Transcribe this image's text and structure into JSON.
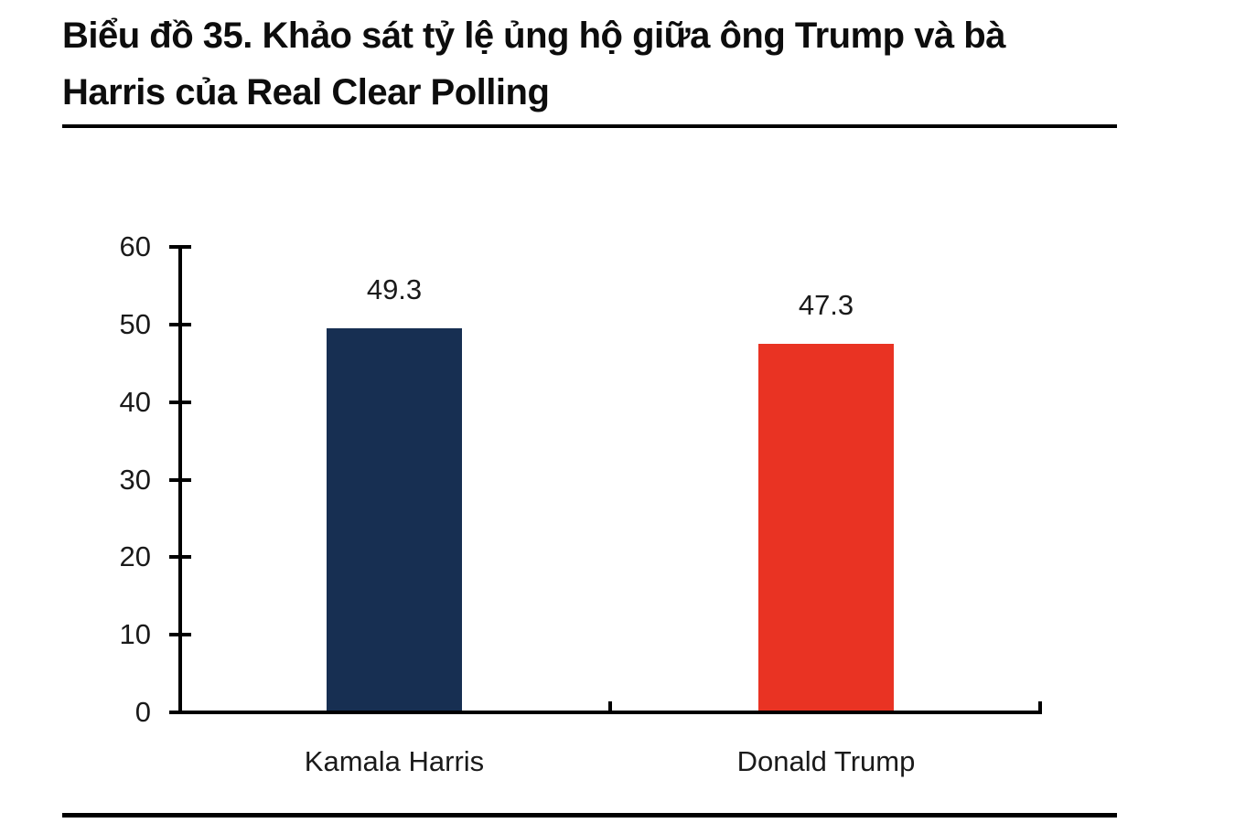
{
  "page": {
    "title_lines": [
      "Biểu đồ 35. Khảo sát tỷ lệ ủng hộ giữa ông Trump và bà",
      "Harris của Real Clear Polling"
    ]
  },
  "chart_data": {
    "type": "bar",
    "title": "Biểu đồ 35. Khảo sát tỷ lệ ủng hộ giữa ông Trump và bà Harris của Real Clear Polling",
    "categories": [
      "Kamala Harris",
      "Donald Trump"
    ],
    "values": [
      49.3,
      47.3
    ],
    "value_labels": [
      "49.3",
      "47.3"
    ],
    "bar_colors": [
      "#172f52",
      "#e93323"
    ],
    "xlabel": "",
    "ylabel": "",
    "ylim": [
      0,
      60
    ],
    "yticks": [
      0,
      10,
      20,
      30,
      40,
      50,
      60
    ],
    "grid": false,
    "legend_position": "none",
    "axis_color": "#000000",
    "label_color": "#1a1a1a"
  }
}
